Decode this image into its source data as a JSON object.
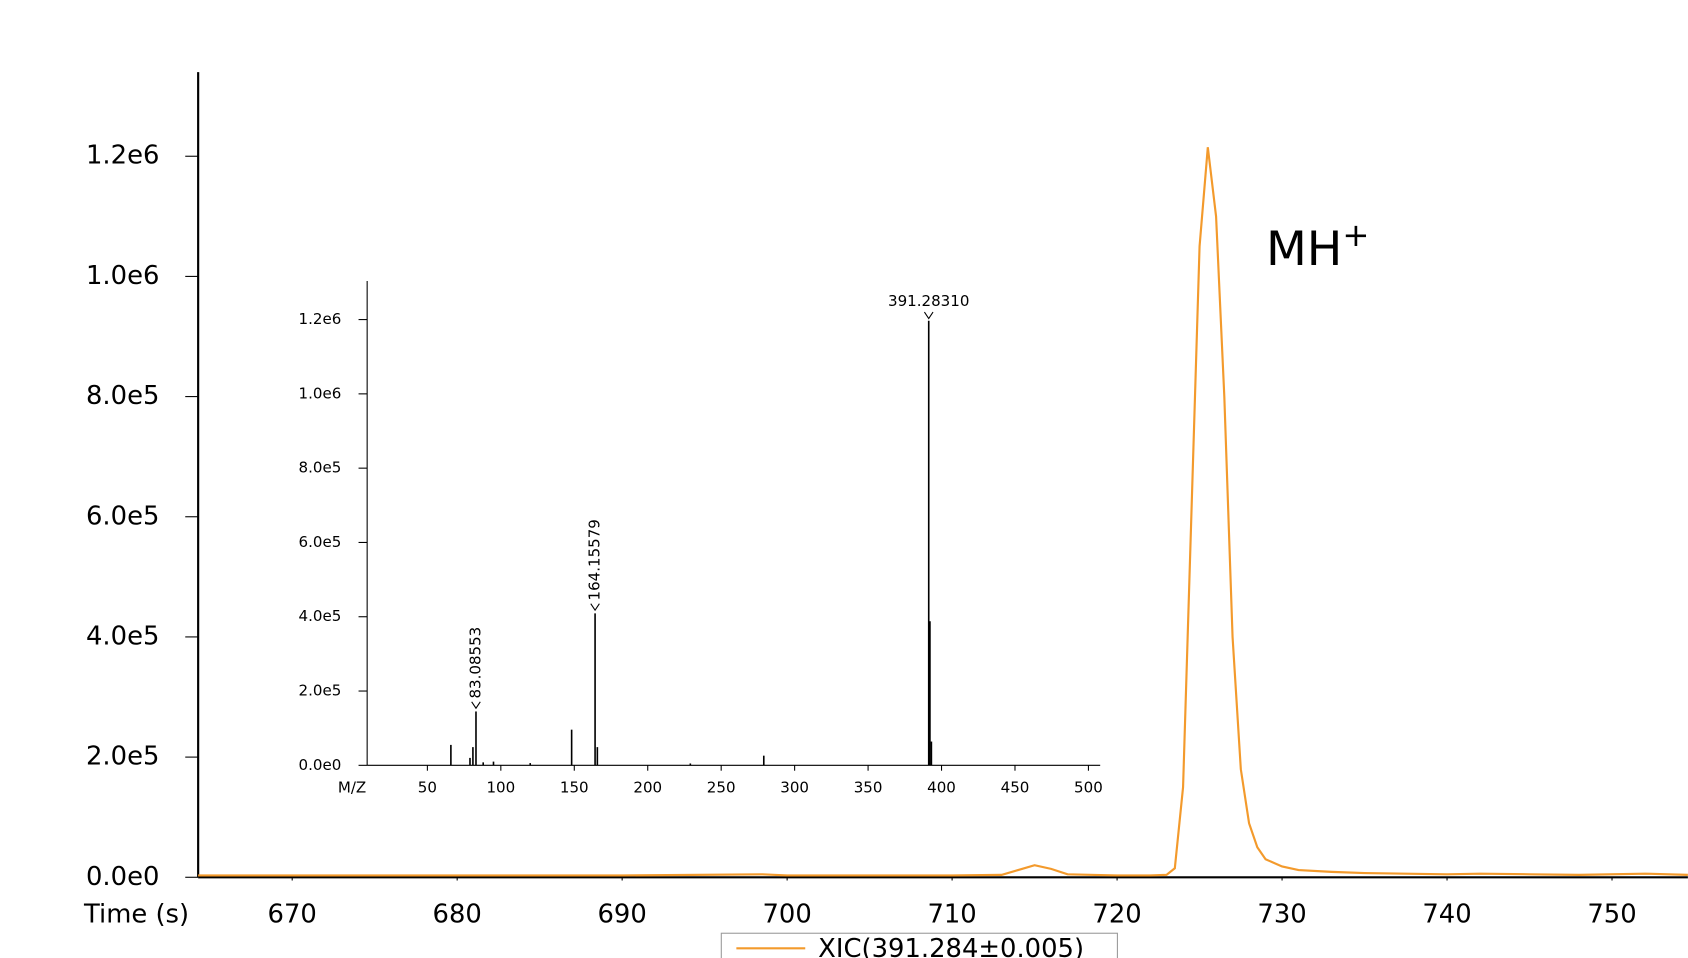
{
  "chart_data": [
    {
      "type": "line",
      "x_label": "Time (s)",
      "xlim": [
        664.3,
        754.6
      ],
      "xticks": [
        670,
        680,
        690,
        700,
        710,
        720,
        730,
        740,
        750
      ],
      "ylim": [
        0,
        1340000
      ],
      "yticks": [
        {
          "value": 0,
          "label": "0.0e0"
        },
        {
          "value": 200000,
          "label": "2.0e5"
        },
        {
          "value": 400000,
          "label": "4.0e5"
        },
        {
          "value": 600000,
          "label": "6.0e5"
        },
        {
          "value": 800000,
          "label": "8.0e5"
        },
        {
          "value": 1000000,
          "label": "1.0e6"
        },
        {
          "value": 1200000,
          "label": "1.2e6"
        }
      ],
      "x": [
        664.3,
        670,
        680,
        690,
        698.5,
        700,
        710,
        713,
        714,
        715,
        716,
        717,
        720,
        722,
        723,
        723.5,
        724,
        724.5,
        725,
        725.5,
        726,
        726.5,
        727,
        727.5,
        728,
        728.5,
        729,
        730,
        731,
        733,
        735,
        740,
        742,
        745,
        748,
        752,
        754.6
      ],
      "series": [
        {
          "name": "XIC(391.284±0.005)",
          "color": "#f39a2c",
          "values": [
            3000,
            3000,
            3000,
            3000,
            5000,
            3000,
            3000,
            4000,
            12000,
            20000,
            14000,
            5000,
            3000,
            3000,
            4000,
            15000,
            150000,
            600000,
            1050000,
            1215000,
            1100000,
            800000,
            400000,
            180000,
            90000,
            50000,
            30000,
            18000,
            12000,
            9000,
            7000,
            5000,
            6000,
            5000,
            4000,
            6000,
            4000
          ]
        }
      ],
      "annotation": {
        "text": "MH",
        "superscript": "+"
      },
      "legend": "bottom"
    },
    {
      "type": "stem",
      "x_label": "M/Z",
      "xlim": [
        9,
        508
      ],
      "xticks": [
        50,
        100,
        150,
        200,
        250,
        300,
        350,
        400,
        450,
        500
      ],
      "ylim": [
        0,
        1304000
      ],
      "yticks": [
        {
          "value": 0,
          "label": "0.0e0"
        },
        {
          "value": 200000,
          "label": "2.0e5"
        },
        {
          "value": 400000,
          "label": "4.0e5"
        },
        {
          "value": 600000,
          "label": "6.0e5"
        },
        {
          "value": 800000,
          "label": "8.0e5"
        },
        {
          "value": 1000000,
          "label": "1.0e6"
        },
        {
          "value": 1200000,
          "label": "1.2e6"
        }
      ],
      "x": [
        66,
        79,
        81,
        83.08553,
        88,
        95,
        120,
        148.2,
        164.15579,
        165.7,
        229,
        279,
        391.2831,
        392.1,
        393.1
      ],
      "values": [
        55000,
        20000,
        49000,
        145000,
        8000,
        10000,
        6000,
        96000,
        409000,
        49000,
        5000,
        26000,
        1197000,
        388000,
        64000
      ],
      "peak_labels": [
        null,
        null,
        null,
        "83.08553",
        null,
        null,
        null,
        null,
        "164.15579",
        null,
        null,
        null,
        "391.28310",
        null,
        null
      ],
      "color": "#000000"
    }
  ]
}
